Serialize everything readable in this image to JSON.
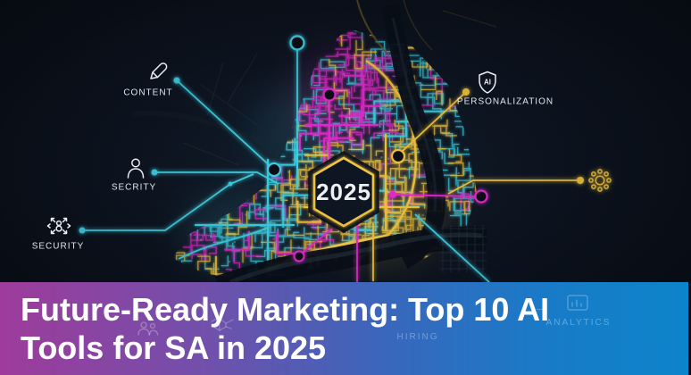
{
  "banner": {
    "title_line1": "Future-Ready Marketing: Top 10 AI",
    "title_line2": "Tools for SA in 2025",
    "watermarks": {
      "hiring": "HIRING",
      "analytics": "ANALYTICS"
    }
  },
  "map": {
    "year_label": "2025",
    "callouts": {
      "content": {
        "label": "CONTENT",
        "icon": "pen-icon"
      },
      "secrity": {
        "label": "SECRITY",
        "icon": "person-icon"
      },
      "security": {
        "label": "SECURITY",
        "icon": "drone-icon"
      },
      "personalization": {
        "label": "PERSONALIZATION",
        "icon": "ai-shield-icon",
        "badge": "AI"
      }
    },
    "colors": {
      "cyan": "#3fd2e6",
      "magenta": "#e82bd0",
      "yellow": "#f2c53d",
      "background": "#0a0f18",
      "banner_left": "#9e3b9b",
      "banner_right": "#0c84cb"
    }
  }
}
